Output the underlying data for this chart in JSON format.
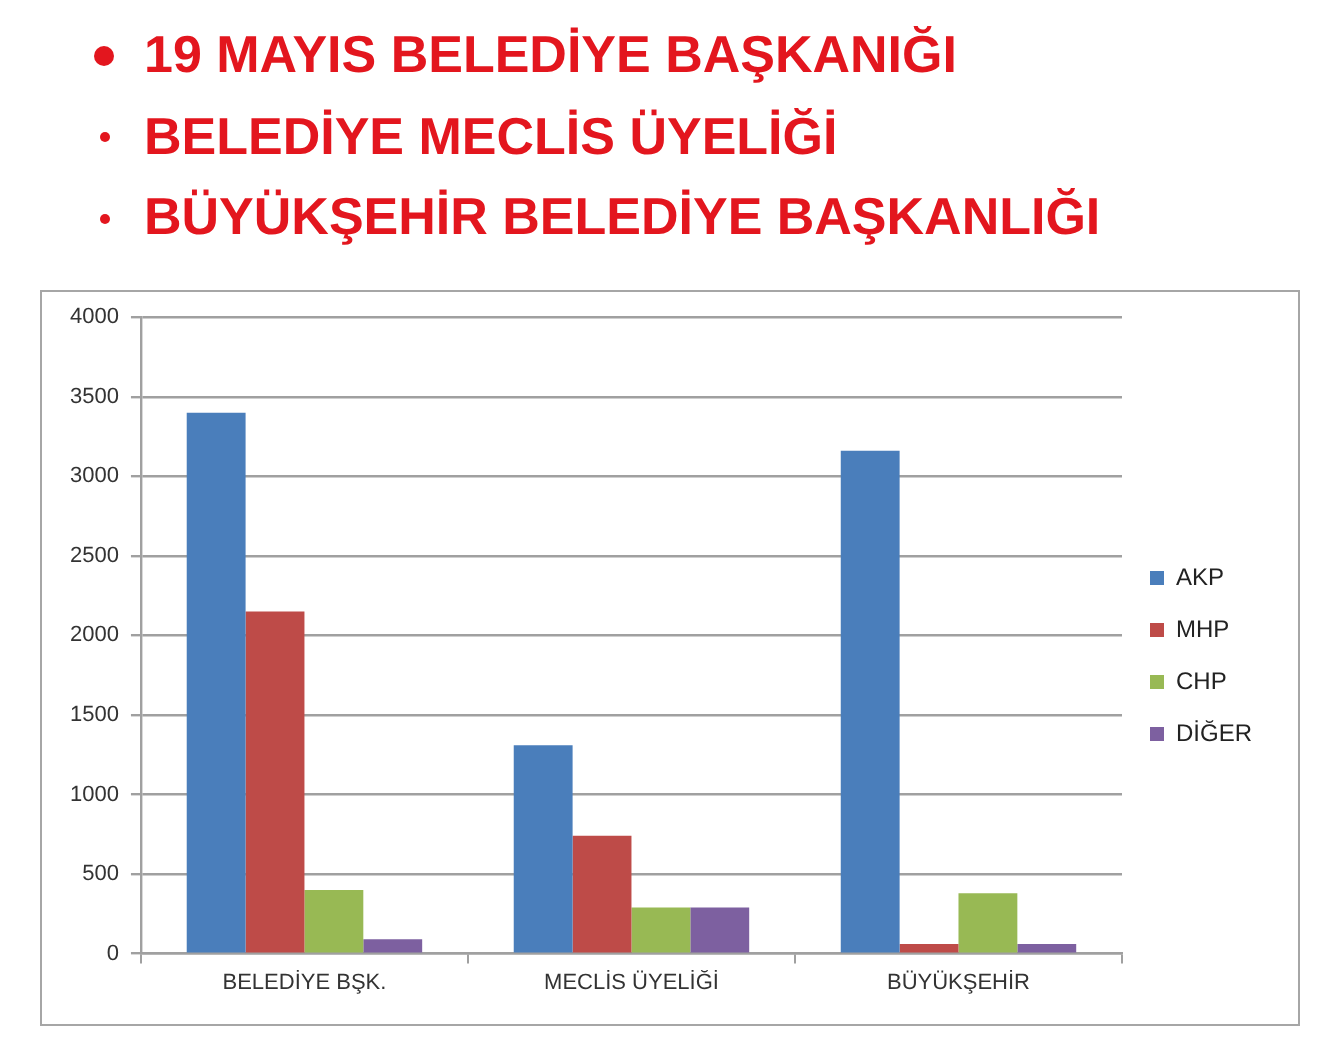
{
  "chart_data": {
    "type": "bar",
    "title": "19 MAYIS BELEDİYE BAŞKANIĞI",
    "subtitle": "BELEDİYE MECLİS ÜYELİĞİ",
    "annotations": [
      "BÜYÜKŞEHİR BELEDİYE BAŞKANLIĞI"
    ],
    "categories": [
      "BELEDİYE BŞK.",
      "MECLİS ÜYELİĞİ",
      "BÜYÜKŞEHİR"
    ],
    "series": [
      {
        "name": "AKP",
        "color": "#4a7ebb",
        "values": [
          3400,
          1310,
          3160
        ]
      },
      {
        "name": "MHP",
        "color": "#be4b48",
        "values": [
          2150,
          740,
          60
        ]
      },
      {
        "name": "CHP",
        "color": "#98b954",
        "values": [
          400,
          290,
          380
        ]
      },
      {
        "name": "DİĞER",
        "color": "#7d60a0",
        "values": [
          90,
          290,
          60
        ]
      }
    ],
    "ylim": [
      0,
      4000
    ],
    "yticks": [
      0,
      500,
      1000,
      1500,
      2000,
      2500,
      3000,
      3500,
      4000
    ],
    "grid": "y",
    "legend": "right"
  }
}
